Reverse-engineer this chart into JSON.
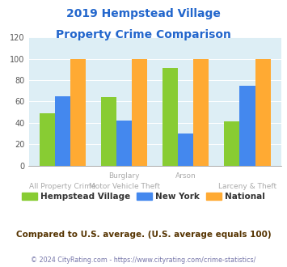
{
  "title_line1": "2019 Hempstead Village",
  "title_line2": "Property Crime Comparison",
  "hempstead": [
    49,
    64,
    91,
    41
  ],
  "newyork": [
    65,
    42,
    30,
    75
  ],
  "national": [
    100,
    100,
    100,
    100
  ],
  "colors": {
    "hempstead": "#88cc33",
    "newyork": "#4488ee",
    "national": "#ffaa33"
  },
  "ylim": [
    0,
    120
  ],
  "yticks": [
    0,
    20,
    40,
    60,
    80,
    100,
    120
  ],
  "title_color": "#2266cc",
  "legend_labels": [
    "Hempstead Village",
    "New York",
    "National"
  ],
  "footer_text": "Compared to U.S. average. (U.S. average equals 100)",
  "copyright_text": "© 2024 CityRating.com - https://www.cityrating.com/crime-statistics/",
  "plot_bg": "#ddeef5",
  "footer_color": "#553300",
  "copyright_color": "#7777aa",
  "x_label_top": [
    "",
    "Burglary",
    "Arson",
    ""
  ],
  "x_label_bot": [
    "All Property Crime",
    "Motor Vehicle Theft",
    "",
    "Larceny & Theft"
  ],
  "x_label_color": "#aaaaaa"
}
